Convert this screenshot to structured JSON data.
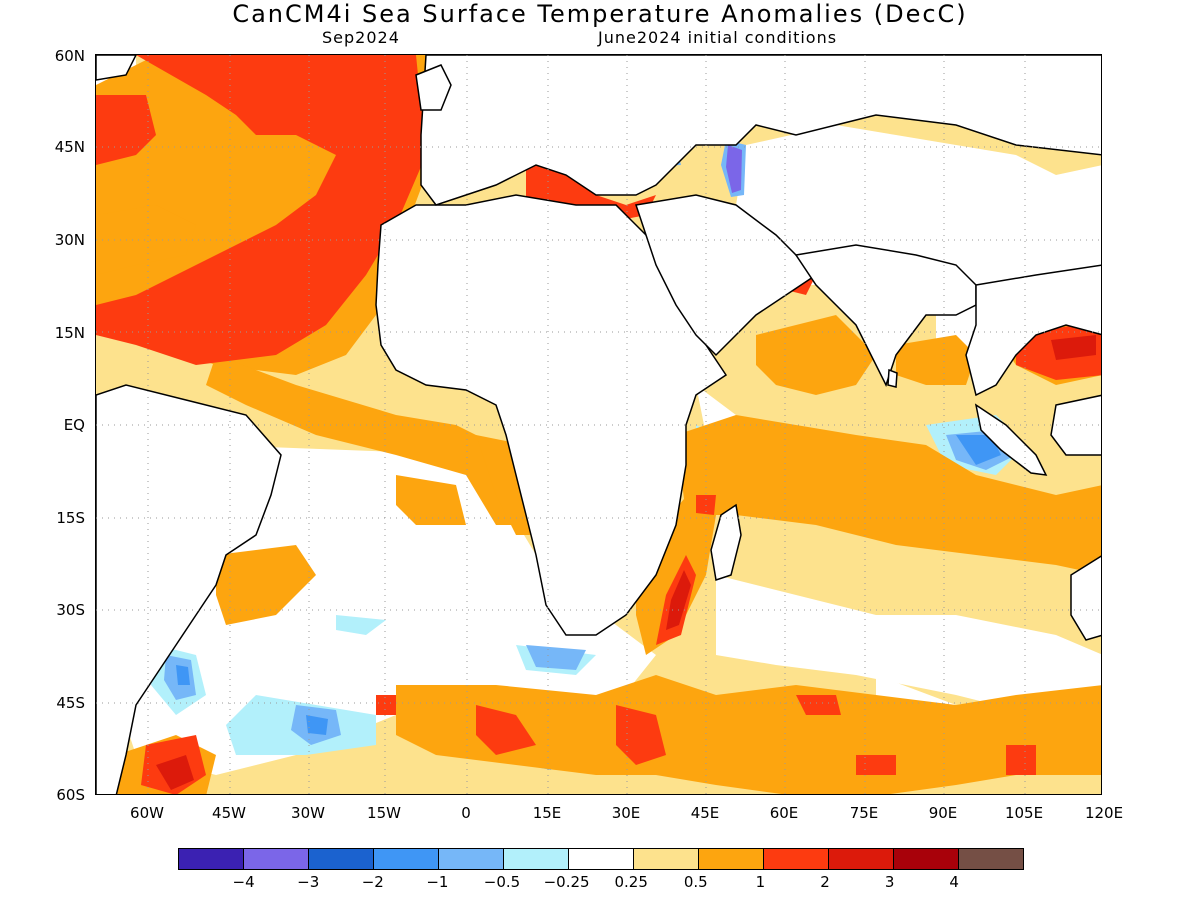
{
  "title": "CanCM4i Sea Surface Temperature Anomalies (DecC)",
  "subtitle_left": "Sep2024",
  "subtitle_right": "June2024 initial conditions",
  "lat_labels": [
    "60N",
    "45N",
    "30N",
    "15N",
    "EQ",
    "15S",
    "30S",
    "45S",
    "60S"
  ],
  "lon_labels": [
    "60W",
    "45W",
    "30W",
    "15W",
    "0",
    "15E",
    "30E",
    "45E",
    "60E",
    "75E",
    "90E",
    "105E",
    "120E"
  ],
  "colorbar": {
    "colors": [
      "#3b21b2",
      "#7b66e8",
      "#1b62cf",
      "#3f96f5",
      "#76b7f8",
      "#b2f0fb",
      "#ffffff",
      "#fde28d",
      "#fda50f",
      "#fd3b10",
      "#dc1a0b",
      "#a8010a",
      "#754f45"
    ],
    "labels": [
      "−4",
      "−3",
      "−2",
      "−1",
      "−0.5",
      "−0.25",
      "0.25",
      "0.5",
      "1",
      "2",
      "3",
      "4"
    ]
  }
}
